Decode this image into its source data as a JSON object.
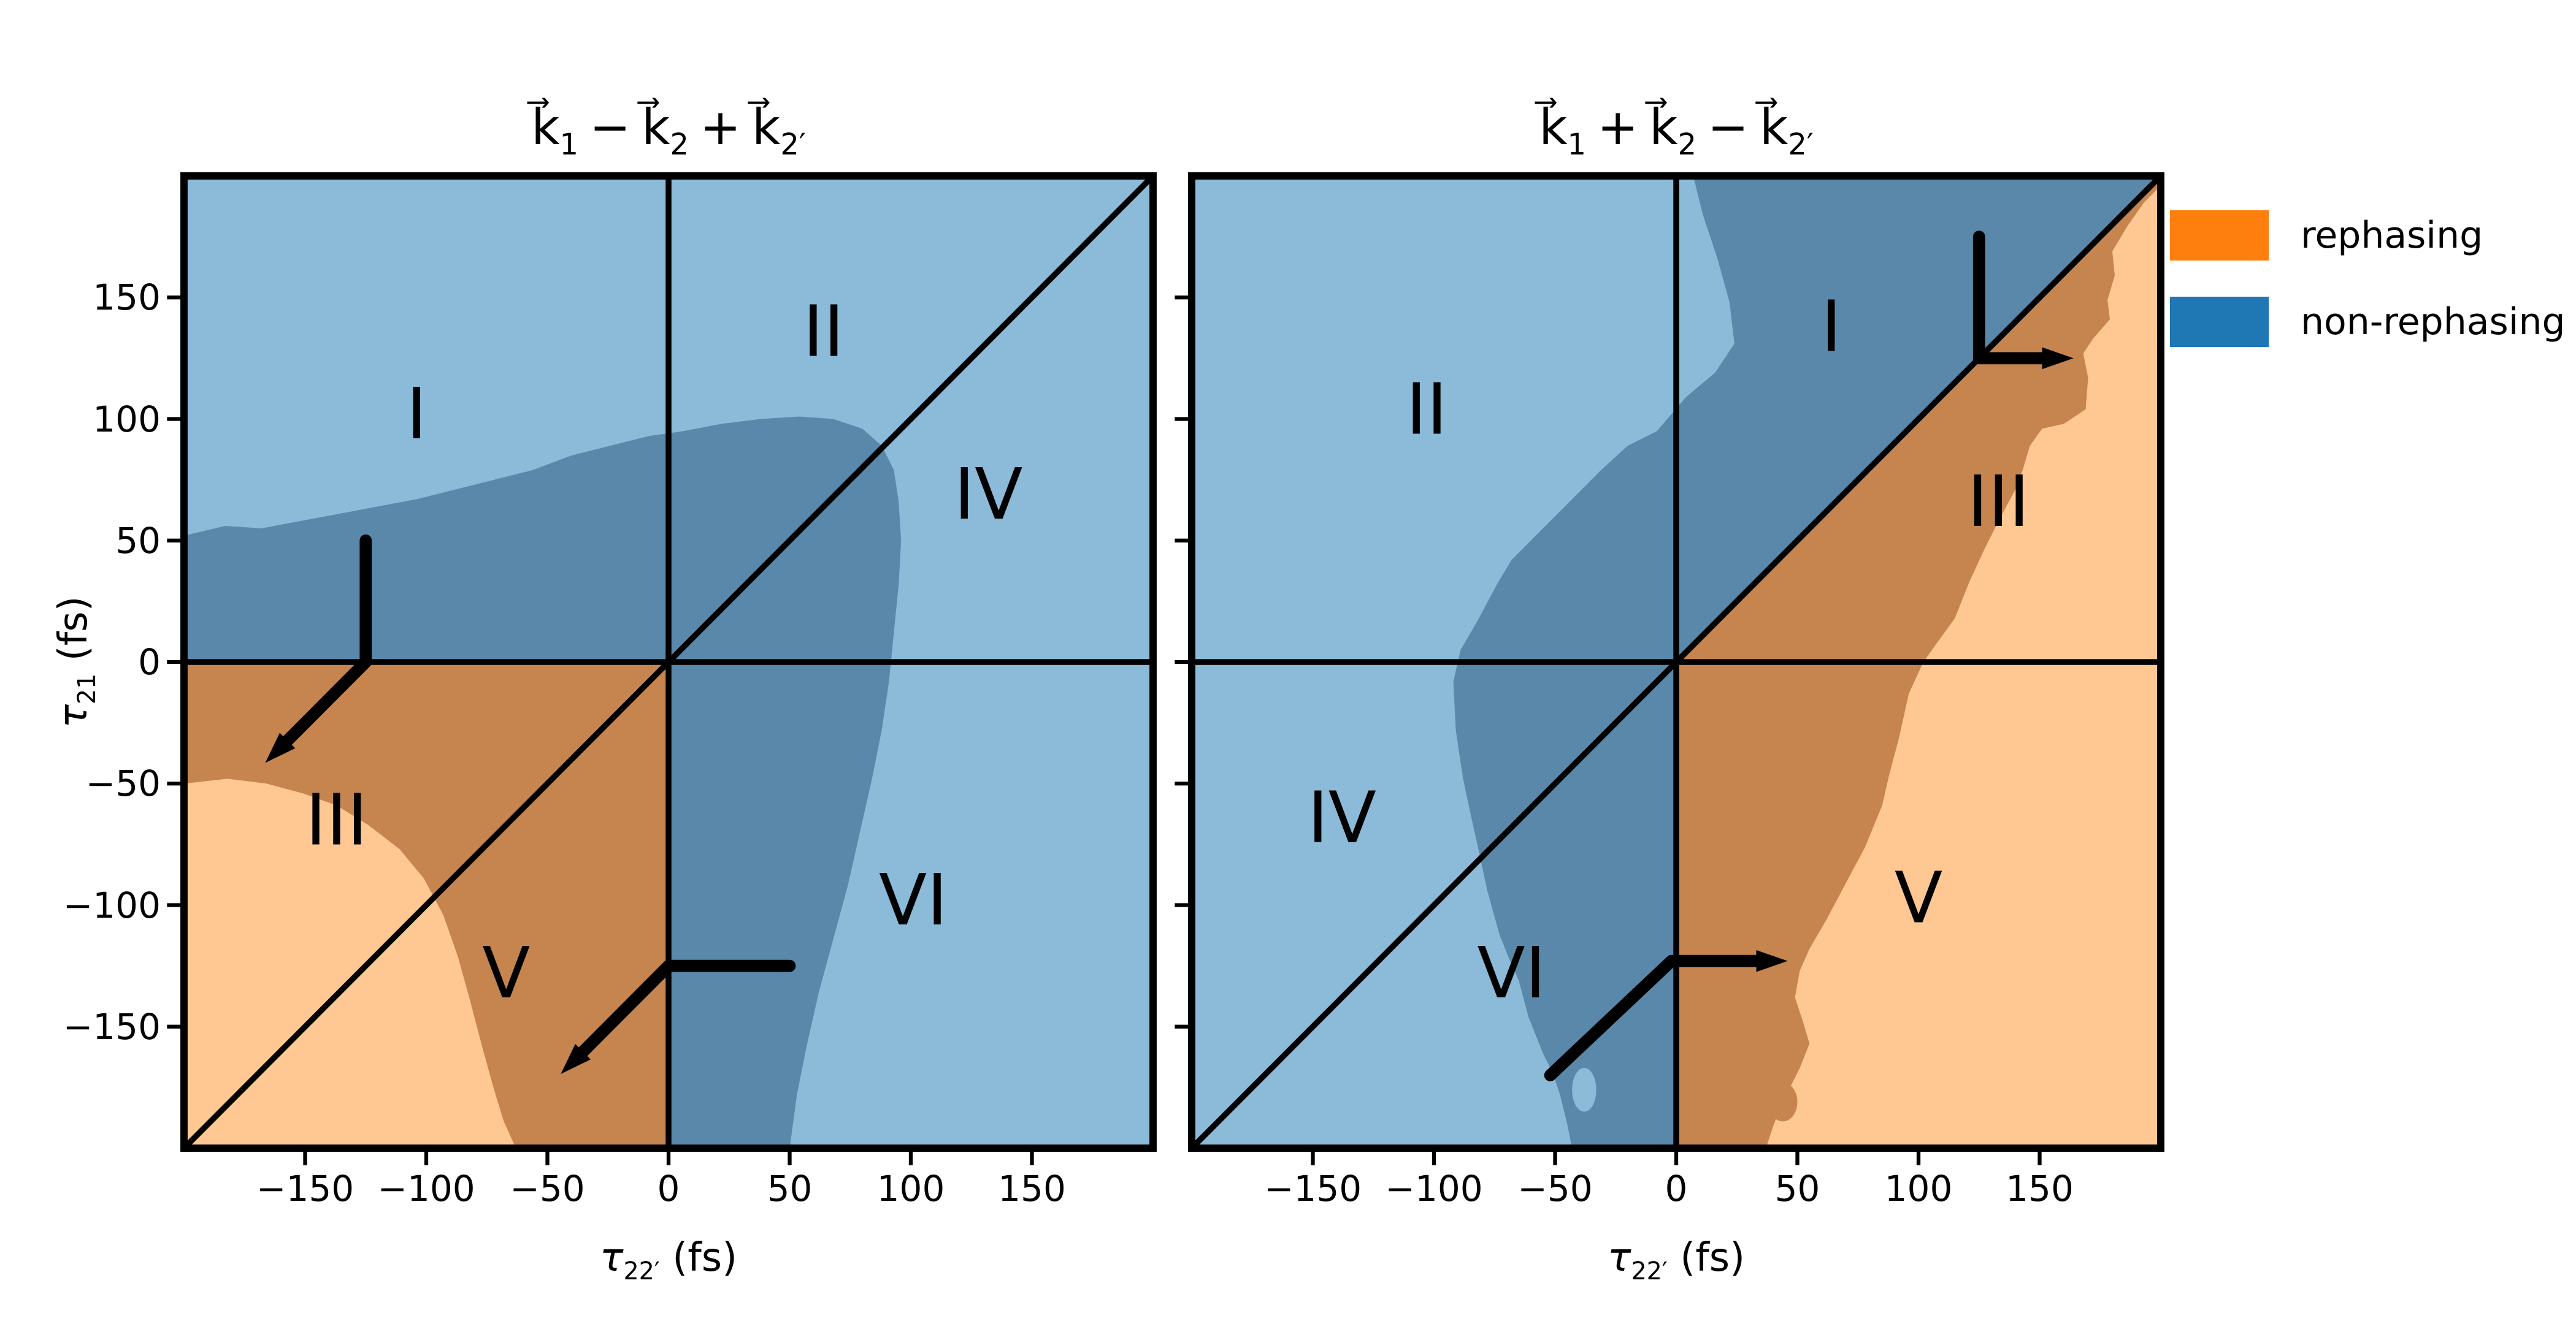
{
  "figure": {
    "background": "#ffffff"
  },
  "colors": {
    "rephasing": "#ff7f0e",
    "non_rephasing": "#1f77b4",
    "base_blue": "#8cbad9",
    "base_orange": "#ffc792",
    "overlap_blue": "#5a88aa",
    "overlap_orange": "#c6854f",
    "line": "#000000"
  },
  "legend": {
    "items": [
      {
        "label": "rephasing",
        "color": "rephasing"
      },
      {
        "label": "non-rephasing",
        "color": "non_rephasing"
      }
    ]
  },
  "axes": {
    "range": [
      -200,
      200
    ],
    "frame_polygon": [
      [
        -200,
        -200
      ],
      [
        200,
        -200
      ],
      [
        200,
        200
      ],
      [
        -200,
        200
      ]
    ],
    "x_label": {
      "symbol": "τ",
      "sub": "22′",
      "unit": " (fs)"
    },
    "y_label": {
      "symbol": "τ",
      "sub": "21",
      "unit": " (fs)"
    },
    "ticks": [
      {
        "value": -150,
        "label": "−150"
      },
      {
        "value": -100,
        "label": "−100"
      },
      {
        "value": -50,
        "label": "−50"
      },
      {
        "value": 0,
        "label": "0"
      },
      {
        "value": 50,
        "label": "50"
      },
      {
        "value": 100,
        "label": "100"
      },
      {
        "value": 150,
        "label": "150"
      }
    ]
  },
  "chart_data": [
    {
      "type": "heatmap",
      "name": "phase-matching map k1 - k2 + k2'",
      "title_terms": [
        {
          "base": "k⃗",
          "sub": "1"
        },
        {
          "op": "−"
        },
        {
          "base": "k⃗",
          "sub": "2"
        },
        {
          "op": "+"
        },
        {
          "base": "k⃗",
          "sub": "2′"
        }
      ],
      "x_range": [
        -200,
        200
      ],
      "y_range": [
        -200,
        200
      ],
      "diagonal": true,
      "rephasing_base_polygon": [
        [
          -200,
          0
        ],
        [
          0,
          0
        ],
        [
          0,
          -200
        ],
        [
          -200,
          -200
        ]
      ],
      "overlap_band_polygon": [
        [
          -200,
          52
        ],
        [
          -183,
          56
        ],
        [
          -168,
          55
        ],
        [
          -152,
          58
        ],
        [
          -136,
          61
        ],
        [
          -120,
          64
        ],
        [
          -104,
          67
        ],
        [
          -88,
          71
        ],
        [
          -72,
          75
        ],
        [
          -56,
          79
        ],
        [
          -40,
          85
        ],
        [
          -24,
          89
        ],
        [
          -8,
          93
        ],
        [
          6,
          95
        ],
        [
          22,
          98
        ],
        [
          38,
          100
        ],
        [
          54,
          101
        ],
        [
          68,
          100
        ],
        [
          80,
          96
        ],
        [
          88,
          89
        ],
        [
          93,
          79
        ],
        [
          95,
          66
        ],
        [
          96,
          50
        ],
        [
          95,
          32
        ],
        [
          93,
          12
        ],
        [
          91,
          -8
        ],
        [
          88,
          -28
        ],
        [
          84,
          -48
        ],
        [
          79,
          -70
        ],
        [
          74,
          -92
        ],
        [
          68,
          -114
        ],
        [
          62,
          -136
        ],
        [
          57,
          -158
        ],
        [
          53,
          -178
        ],
        [
          50,
          -200
        ],
        [
          -63,
          -200
        ],
        [
          -68,
          -189
        ],
        [
          -72,
          -176
        ],
        [
          -77,
          -158
        ],
        [
          -82,
          -139
        ],
        [
          -87,
          -121
        ],
        [
          -93,
          -104
        ],
        [
          -101,
          -89
        ],
        [
          -111,
          -77
        ],
        [
          -124,
          -67
        ],
        [
          -137,
          -59
        ],
        [
          -151,
          -54
        ],
        [
          -166,
          -50
        ],
        [
          -182,
          -48
        ],
        [
          -200,
          -50
        ]
      ],
      "spots": [],
      "region_labels": [
        {
          "text": "I",
          "x": -104,
          "y": 102
        },
        {
          "text": "II",
          "x": 64,
          "y": 136
        },
        {
          "text": "III",
          "x": -137,
          "y": -65
        },
        {
          "text": "IV",
          "x": 132,
          "y": 69
        },
        {
          "text": "V",
          "x": -67,
          "y": -128
        },
        {
          "text": "VI",
          "x": 101,
          "y": -98
        }
      ],
      "pulse_arrows": [
        {
          "points": [
            [
              -125,
              50
            ],
            [
              -125,
              0
            ],
            [
              -158,
              -33
            ]
          ]
        },
        {
          "points": [
            [
              50,
              -125
            ],
            [
              0,
              -125
            ],
            [
              -36,
              -161
            ]
          ]
        }
      ]
    },
    {
      "type": "heatmap",
      "name": "phase-matching map k1 + k2 - k2'",
      "title_terms": [
        {
          "base": "k⃗",
          "sub": "1"
        },
        {
          "op": "+"
        },
        {
          "base": "k⃗",
          "sub": "2"
        },
        {
          "op": "−"
        },
        {
          "base": "k⃗",
          "sub": "2′"
        }
      ],
      "x_range": [
        -200,
        200
      ],
      "y_range": [
        -200,
        200
      ],
      "diagonal": true,
      "rephasing_base_polygon": [
        [
          0,
          0
        ],
        [
          200,
          200
        ],
        [
          200,
          -200
        ],
        [
          0,
          -200
        ]
      ],
      "overlap_band_polygon": [
        [
          7,
          200
        ],
        [
          11,
          184
        ],
        [
          17,
          166
        ],
        [
          22,
          148
        ],
        [
          24,
          131
        ],
        [
          16,
          119
        ],
        [
          4,
          109
        ],
        [
          -8,
          95
        ],
        [
          -20,
          89
        ],
        [
          -31,
          79
        ],
        [
          -42,
          68
        ],
        [
          -52,
          58
        ],
        [
          -61,
          49
        ],
        [
          -68,
          42
        ],
        [
          -74,
          32
        ],
        [
          -82,
          17
        ],
        [
          -89,
          5
        ],
        [
          -92,
          -8
        ],
        [
          -91,
          -28
        ],
        [
          -88,
          -48
        ],
        [
          -85,
          -62
        ],
        [
          -81,
          -80
        ],
        [
          -78,
          -94
        ],
        [
          -73,
          -112
        ],
        [
          -69,
          -122
        ],
        [
          -65,
          -131
        ],
        [
          -61,
          -146
        ],
        [
          -55,
          -161
        ],
        [
          -51,
          -169
        ],
        [
          -48,
          -178
        ],
        [
          -45,
          -190
        ],
        [
          -43,
          -200
        ],
        [
          37,
          -200
        ],
        [
          40,
          -191
        ],
        [
          43,
          -183
        ],
        [
          47,
          -175
        ],
        [
          51,
          -167
        ],
        [
          55,
          -157
        ],
        [
          52,
          -147
        ],
        [
          49,
          -138
        ],
        [
          51,
          -127
        ],
        [
          55,
          -118
        ],
        [
          62,
          -106
        ],
        [
          70,
          -91
        ],
        [
          78,
          -76
        ],
        [
          85,
          -59
        ],
        [
          88,
          -46
        ],
        [
          92,
          -31
        ],
        [
          96,
          -13
        ],
        [
          102,
          0
        ],
        [
          107,
          7
        ],
        [
          115,
          18
        ],
        [
          121,
          33
        ],
        [
          127,
          46
        ],
        [
          133,
          58
        ],
        [
          140,
          71
        ],
        [
          143,
          79
        ],
        [
          146,
          89
        ],
        [
          151,
          96
        ],
        [
          160,
          98
        ],
        [
          169,
          104
        ],
        [
          170,
          117
        ],
        [
          168,
          127
        ],
        [
          172,
          133
        ],
        [
          179,
          141
        ],
        [
          178,
          149
        ],
        [
          181,
          159
        ],
        [
          180,
          169
        ],
        [
          186,
          179
        ],
        [
          193,
          189
        ],
        [
          200,
          196
        ],
        [
          200,
          200
        ]
      ],
      "spots": [
        {
          "x": -38,
          "y": -176,
          "rx": 5,
          "ry": 9,
          "color": "base_blue"
        },
        {
          "x": 44,
          "y": -181,
          "rx": 6,
          "ry": 8,
          "color": "overlap_orange"
        }
      ],
      "region_labels": [
        {
          "text": "I",
          "x": 64,
          "y": 138
        },
        {
          "text": "II",
          "x": -103,
          "y": 104
        },
        {
          "text": "III",
          "x": 133,
          "y": 66
        },
        {
          "text": "IV",
          "x": -138,
          "y": -64
        },
        {
          "text": "V",
          "x": 100,
          "y": -97
        },
        {
          "text": "VI",
          "x": -68,
          "y": -128
        }
      ],
      "pulse_arrows": [
        {
          "points": [
            [
              125,
              175
            ],
            [
              125,
              125
            ],
            [
              152,
              125
            ]
          ]
        },
        {
          "points": [
            [
              -52,
              -170
            ],
            [
              -2,
              -123
            ],
            [
              34,
              -123
            ]
          ]
        }
      ]
    }
  ]
}
